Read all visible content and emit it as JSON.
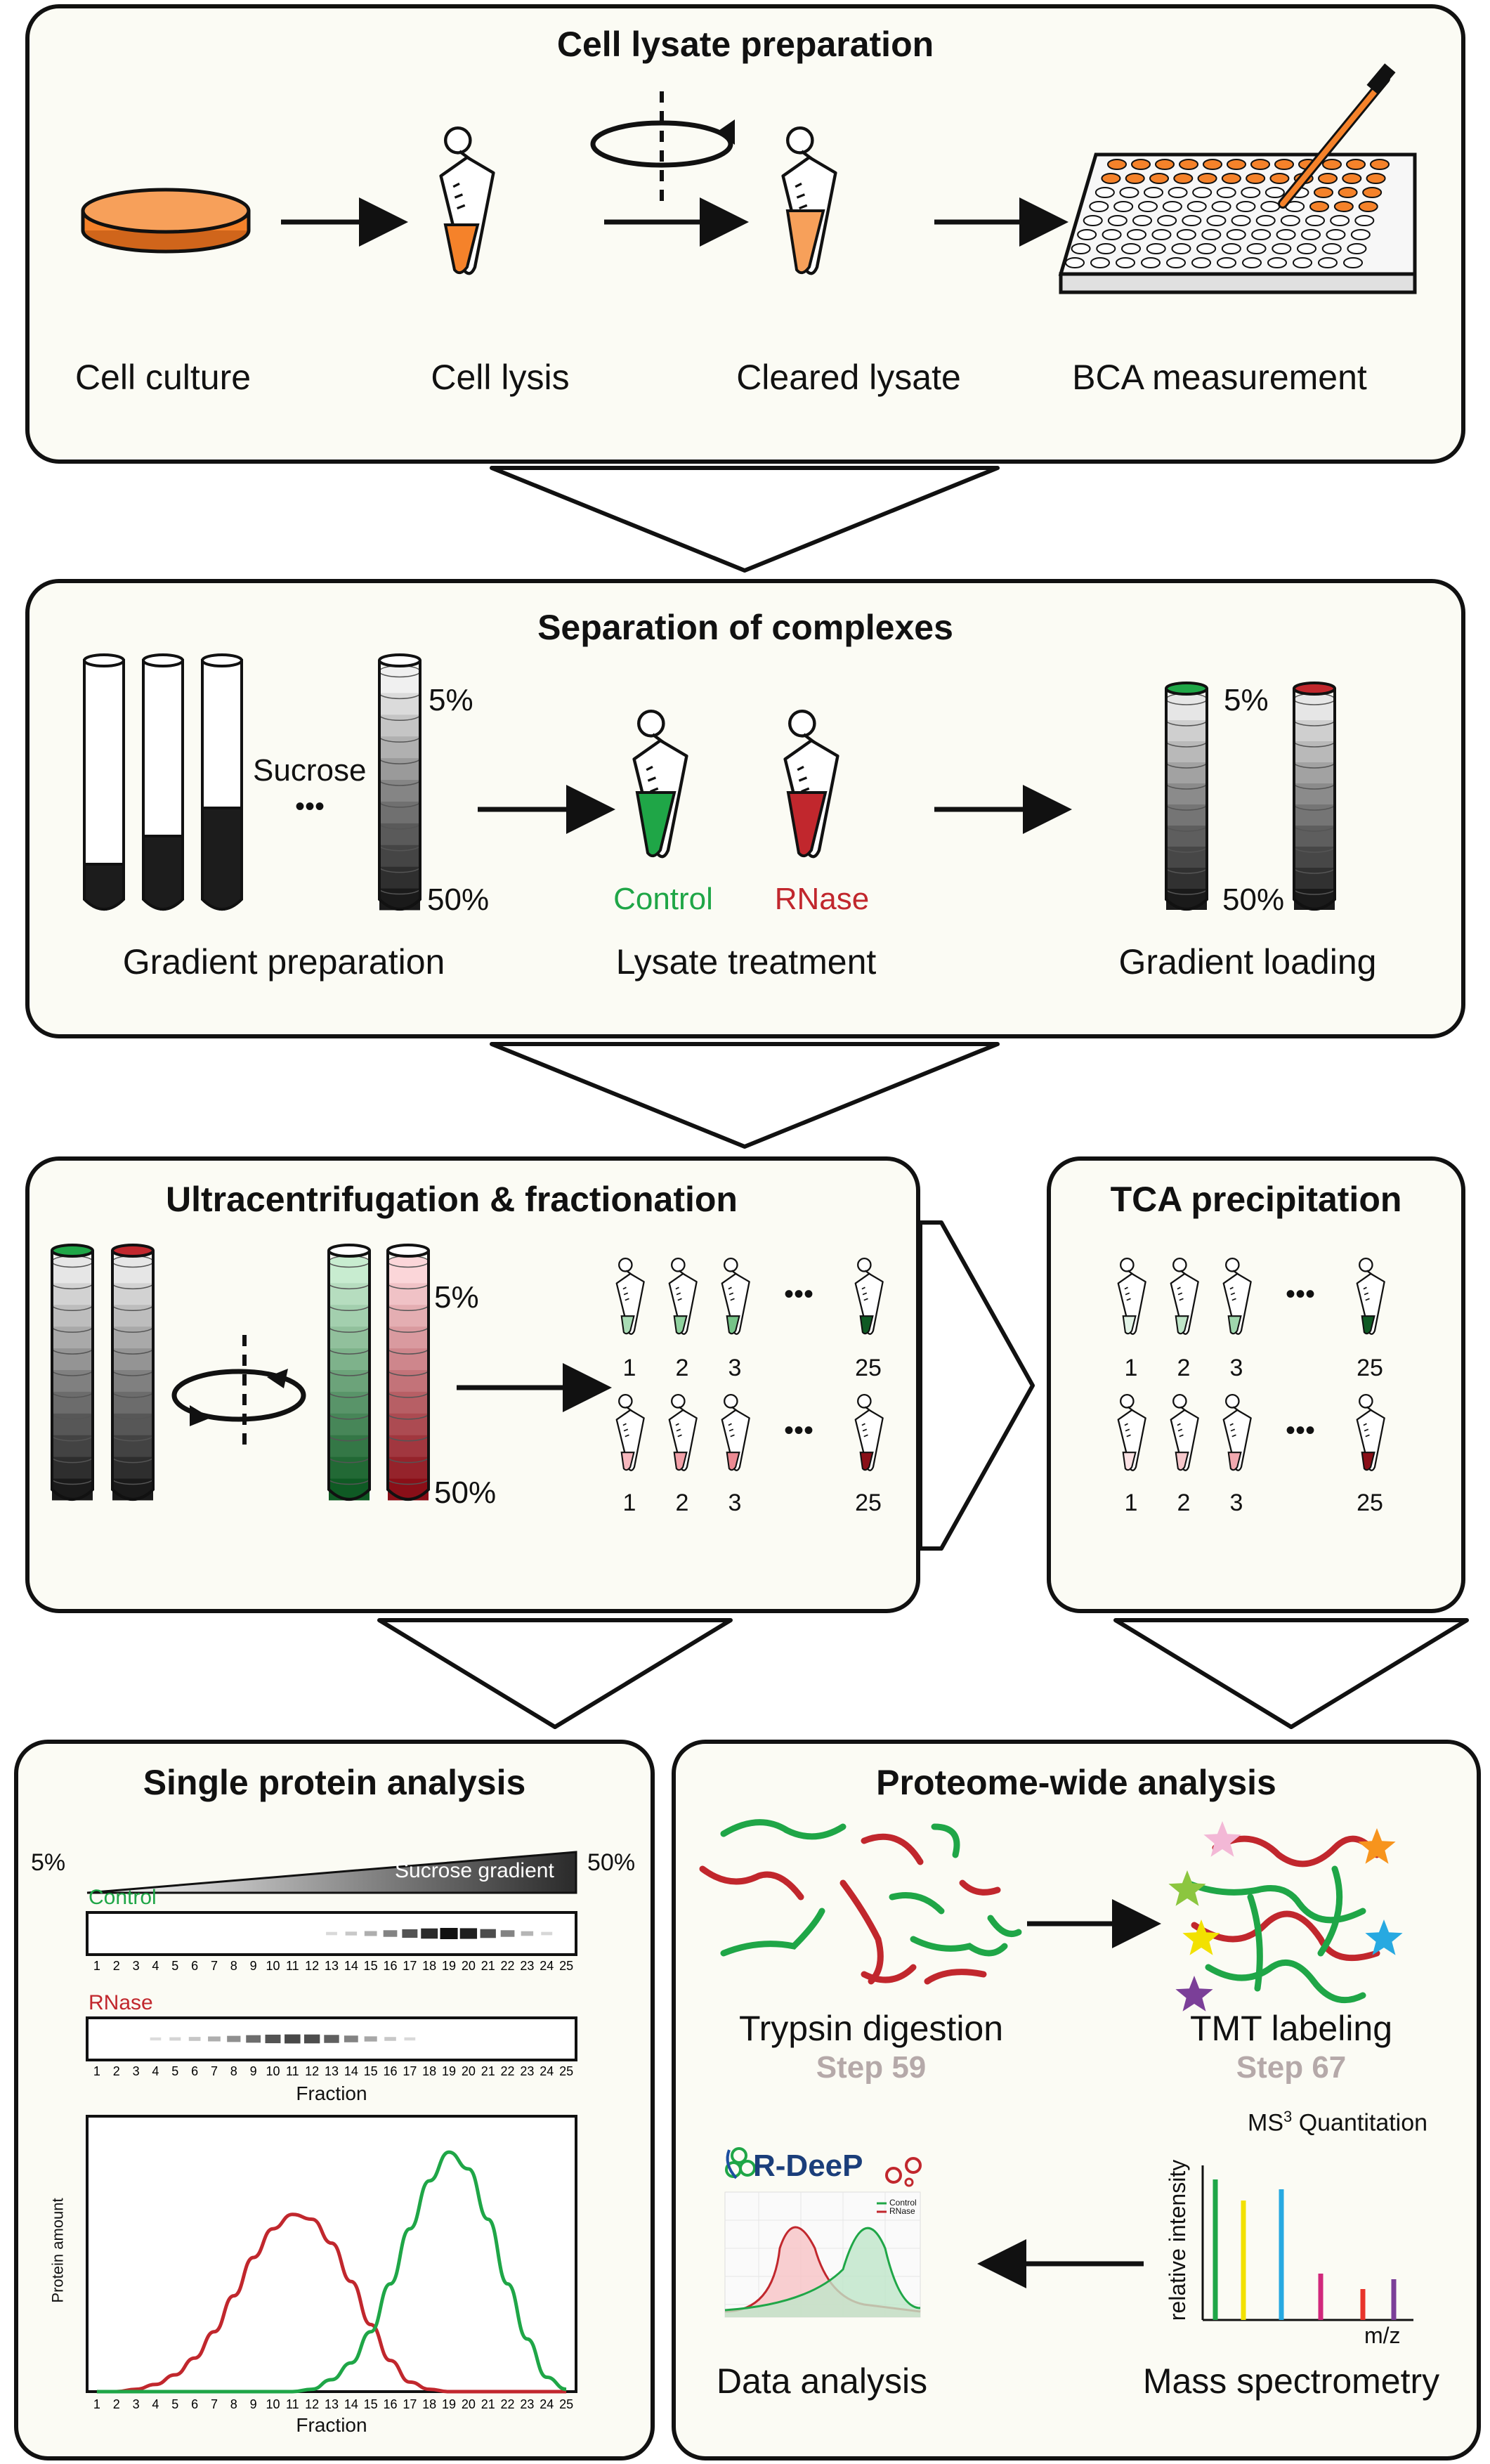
{
  "panels": {
    "lysate": {
      "title": "Cell lysate preparation",
      "steps": [
        "Cell culture",
        "Cell lysis",
        "Cleared lysate",
        "BCA measurement"
      ]
    },
    "separation": {
      "title": "Separation of complexes",
      "sucrose": "Sucrose",
      "ellipsis": "•••",
      "pct_top": "5%",
      "pct_bottom": "50%",
      "control": "Control",
      "rnase": "RNase",
      "steps": [
        "Gradient preparation",
        "Lysate treatment",
        "Gradient loading"
      ]
    },
    "ultra": {
      "title": "Ultracentrifugation & fractionation",
      "pct_top": "5%",
      "pct_bottom": "50%",
      "fractions": [
        "1",
        "2",
        "3",
        "25"
      ],
      "ellipsis": "•••"
    },
    "tca": {
      "title": "TCA precipitation",
      "fractions": [
        "1",
        "2",
        "3",
        "25"
      ],
      "ellipsis": "•••"
    },
    "single": {
      "title": "Single protein analysis",
      "gradient_left": "5%",
      "gradient_right": "50%",
      "gradient_label": "Sucrose gradient",
      "control": "Control",
      "rnase": "RNase",
      "fraction_label": "Fraction",
      "ylabel": "Protein amount"
    },
    "proteome": {
      "title": "Proteome-wide analysis",
      "trypsin": "Trypsin digestion",
      "trypsin_step": "Step 59",
      "tmt": "TMT labeling",
      "tmt_step": "Step 67",
      "ms3_base": "MS",
      "ms3_sup": "3",
      "ms3_rest": " Quantitation",
      "rel_intensity": "relative intensity",
      "mz": "m/z",
      "logo": "R-DeeP",
      "legend_control": "Control",
      "legend_rnase": "RNase",
      "data_analysis": "Data analysis",
      "mass_spec": "Mass spectrometry"
    }
  },
  "colors": {
    "orange": "#f5822a",
    "green": "#1fa647",
    "red": "#c1272d",
    "panel_bg": "#fbfbf4"
  },
  "chart_data": {
    "type": "line",
    "xlabel": "Fraction",
    "ylabel": "Protein amount",
    "x": [
      1,
      2,
      3,
      4,
      5,
      6,
      7,
      8,
      9,
      10,
      11,
      12,
      13,
      14,
      15,
      16,
      17,
      18,
      19,
      20,
      21,
      22,
      23,
      24,
      25
    ],
    "series": [
      {
        "name": "Control",
        "color": "#1fa647",
        "values": [
          0,
          0,
          0,
          0,
          0,
          0,
          0,
          0,
          0,
          0,
          0,
          0.01,
          0.05,
          0.12,
          0.25,
          0.45,
          0.68,
          0.88,
          1.0,
          0.93,
          0.72,
          0.45,
          0.22,
          0.06,
          0.01
        ]
      },
      {
        "name": "RNase",
        "color": "#c1272d",
        "values": [
          0,
          0,
          0.01,
          0.03,
          0.07,
          0.14,
          0.25,
          0.4,
          0.56,
          0.68,
          0.74,
          0.72,
          0.62,
          0.46,
          0.28,
          0.13,
          0.04,
          0.01,
          0,
          0,
          0,
          0,
          0,
          0,
          0
        ]
      }
    ]
  },
  "ms_peaks": [
    {
      "color": "#1fa647",
      "value": 1.0
    },
    {
      "color": "#f2e100",
      "value": 0.85
    },
    {
      "color": "#27a9e1",
      "value": 0.93
    },
    {
      "color": "#d1287c",
      "value": 0.33
    },
    {
      "color": "#e8342a",
      "value": 0.22
    },
    {
      "color": "#7b3f98",
      "value": 0.29
    }
  ]
}
